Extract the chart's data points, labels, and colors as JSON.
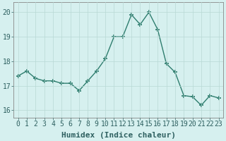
{
  "x": [
    0,
    1,
    2,
    3,
    4,
    5,
    6,
    7,
    8,
    9,
    10,
    11,
    12,
    13,
    14,
    15,
    16,
    17,
    18,
    19,
    20,
    21,
    22,
    23
  ],
  "y": [
    17.4,
    17.6,
    17.3,
    17.2,
    17.2,
    17.1,
    17.1,
    16.8,
    17.2,
    17.6,
    18.1,
    19.0,
    19.0,
    19.9,
    19.5,
    20.0,
    19.3,
    17.9,
    17.55,
    16.6,
    16.55,
    16.2,
    16.6,
    16.5
  ],
  "line_color": "#2e7d6e",
  "marker": "+",
  "markersize": 4,
  "markeredgewidth": 1.2,
  "linewidth": 1.0,
  "bg_color": "#d6f0ef",
  "grid_color": "#b8d8d5",
  "xlabel": "Humidex (Indice chaleur)",
  "xlabel_fontsize": 8,
  "tick_fontsize": 7,
  "ylim": [
    15.7,
    20.4
  ],
  "xlim": [
    -0.5,
    23.5
  ],
  "yticks": [
    16,
    17,
    18,
    19,
    20
  ],
  "xticks": [
    0,
    1,
    2,
    3,
    4,
    5,
    6,
    7,
    8,
    9,
    10,
    11,
    12,
    13,
    14,
    15,
    16,
    17,
    18,
    19,
    20,
    21,
    22,
    23
  ]
}
